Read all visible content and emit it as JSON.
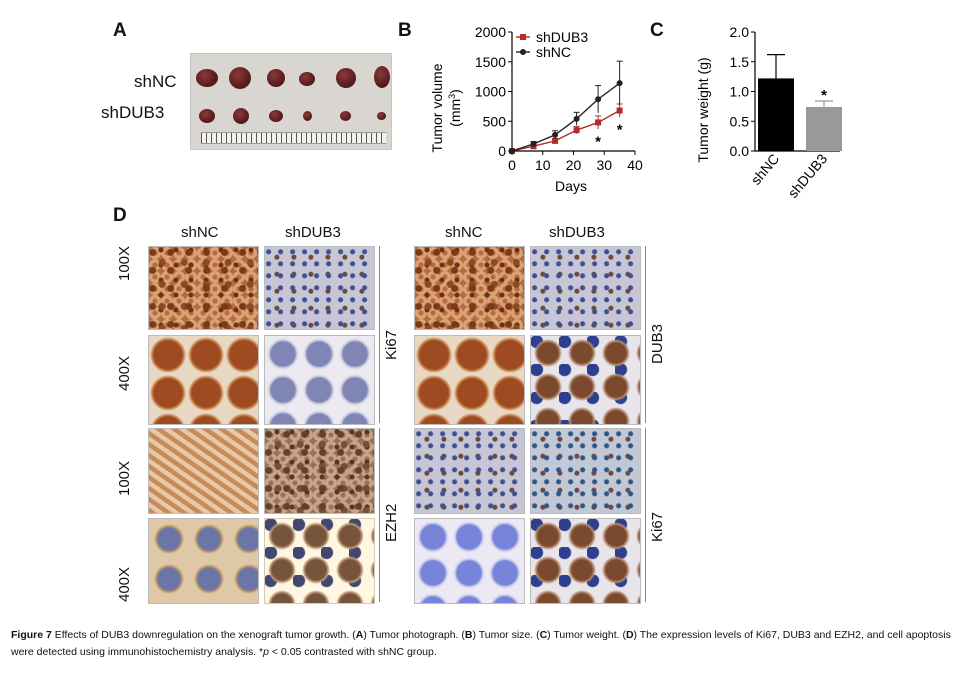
{
  "panels": {
    "a": {
      "label": "A",
      "rows": [
        "shNC",
        "shDUB3"
      ]
    },
    "b": {
      "label": "B"
    },
    "c": {
      "label": "C"
    },
    "d": {
      "label": "D"
    }
  },
  "chart_data": [
    {
      "type": "line",
      "ylabel": "Tumor volume (mm3)",
      "ylabel_line1": "Tumor volume",
      "ylabel_line2": "(mm",
      "ylabel_sup": "3",
      "ylabel_close": ")",
      "xlabel": "Days",
      "xlim": [
        0,
        40
      ],
      "ylim": [
        0,
        2000
      ],
      "xticks": [
        "0",
        "10",
        "20",
        "30",
        "40"
      ],
      "yticks": [
        "0",
        "500",
        "1000",
        "1500",
        "2000"
      ],
      "legend_position": "top-left",
      "series": [
        {
          "name": "shDUB3",
          "color": "#b52a2a",
          "x": [
            0,
            7,
            14,
            21,
            28,
            35
          ],
          "y": [
            0,
            80,
            170,
            350,
            480,
            680
          ],
          "err": [
            0,
            25,
            40,
            60,
            110,
            110
          ]
        },
        {
          "name": "shNC",
          "color": "#222222",
          "x": [
            0,
            7,
            14,
            21,
            28,
            35
          ],
          "y": [
            0,
            120,
            270,
            540,
            870,
            1140
          ],
          "err": [
            0,
            40,
            70,
            110,
            230,
            370
          ]
        }
      ],
      "annotations": [
        {
          "x": 28,
          "text": "*"
        },
        {
          "x": 35,
          "text": "*"
        }
      ]
    },
    {
      "type": "bar",
      "ylabel": "Tumor weight (g)",
      "ylim": [
        0,
        2.0
      ],
      "yticks": [
        "0.0",
        "0.5",
        "1.0",
        "1.5",
        "2.0"
      ],
      "categories": [
        "shNC",
        "shDUB3"
      ],
      "values": [
        1.22,
        0.74
      ],
      "errors": [
        0.4,
        0.1
      ],
      "colors": [
        "#000000",
        "#999999"
      ],
      "annotations": [
        {
          "category": "shDUB3",
          "text": "*"
        }
      ]
    }
  ],
  "ihc": {
    "col_left": [
      "shNC",
      "shDUB3"
    ],
    "col_right": [
      "shNC",
      "shDUB3"
    ],
    "mag": [
      "100X",
      "400X",
      "100X",
      "400X"
    ],
    "markers": [
      "Ki67",
      "DUB3",
      "EZH2",
      "Ki67"
    ]
  },
  "caption": {
    "lead": "Figure 7",
    "text1": " Effects of DUB3 downregulation on the xenograft tumor growth. (",
    "A": "A",
    "text2": ") Tumor photograph. (",
    "B": "B",
    "text3": ") Tumor size. (",
    "C": "C",
    "text4": ") Tumor weight. (",
    "D": "D",
    "text5": ") The expression levels of Ki67, DUB3 and EZH2, and cell apoptosis were detected using immunohistochemistry analysis. *",
    "p": "p",
    "text6": " < 0.05 contrasted with shNC group."
  }
}
